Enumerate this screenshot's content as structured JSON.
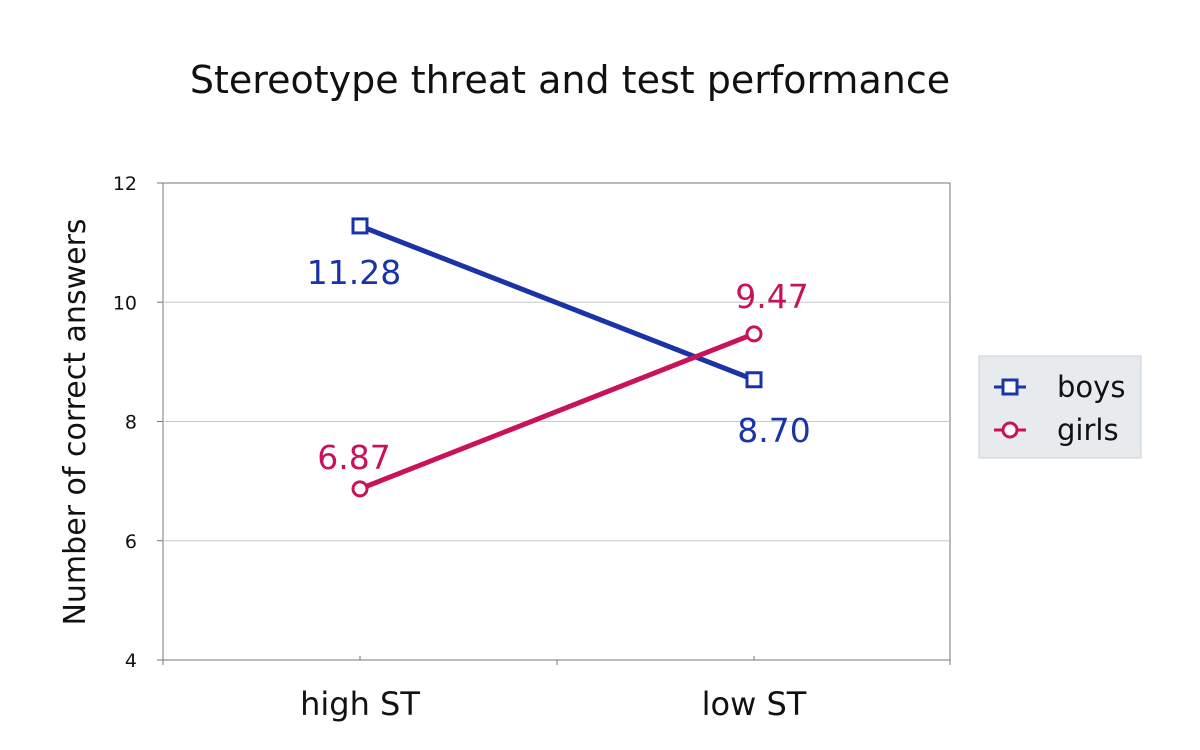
{
  "chart_data": {
    "type": "line",
    "title": "Stereotype threat and test performance",
    "xlabel": "",
    "ylabel": "Number of correct answers",
    "categories": [
      "high ST",
      "low ST"
    ],
    "ylim": [
      4,
      12
    ],
    "yticks": [
      4,
      6,
      8,
      10,
      12
    ],
    "grid": true,
    "legend_position": "right",
    "series": [
      {
        "name": "boys",
        "values": [
          11.28,
          8.7
        ],
        "labels": [
          "11.28",
          "8.70"
        ],
        "color": "#1a34a8",
        "marker": "square"
      },
      {
        "name": "girls",
        "values": [
          6.87,
          9.47
        ],
        "labels": [
          "6.87",
          "9.47"
        ],
        "color": "#c8135c",
        "marker": "circle"
      }
    ]
  }
}
